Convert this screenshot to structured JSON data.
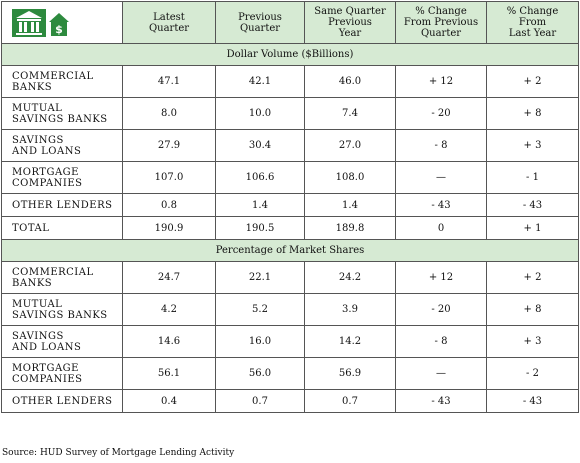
{
  "header": {
    "columns": [
      "Latest\nQuarter",
      "Previous\nQuarter",
      "Same Quarter\nPrevious\nYear",
      "% Change\nFrom Previous\nQuarter",
      "% Change\nFrom\nLast Year"
    ],
    "logo_icons": [
      "bank-building-icon",
      "house-dollar-icon"
    ],
    "logo_color": "#2d8a3e"
  },
  "sections": [
    {
      "title": "Dollar Volume ($Billions)",
      "rows": [
        {
          "label": "COMMERCIAL\nBANKS",
          "latest": "47.1",
          "previous": "42.1",
          "same_quarter_prev_year": "46.0",
          "chg_prev_quarter": "+ 12",
          "chg_last_year": "+ 2"
        },
        {
          "label": "MUTUAL\nSAVINGS BANKS",
          "latest": "8.0",
          "previous": "10.0",
          "same_quarter_prev_year": "7.4",
          "chg_prev_quarter": "- 20",
          "chg_last_year": "+ 8"
        },
        {
          "label": "SAVINGS\nAND LOANS",
          "latest": "27.9",
          "previous": "30.4",
          "same_quarter_prev_year": "27.0",
          "chg_prev_quarter": "- 8",
          "chg_last_year": "+ 3"
        },
        {
          "label": "MORTGAGE\nCOMPANIES",
          "latest": "107.0",
          "previous": "106.6",
          "same_quarter_prev_year": "108.0",
          "chg_prev_quarter": "—",
          "chg_last_year": "- 1"
        },
        {
          "label": "OTHER LENDERS",
          "latest": "0.8",
          "previous": "1.4",
          "same_quarter_prev_year": "1.4",
          "chg_prev_quarter": "- 43",
          "chg_last_year": "- 43"
        },
        {
          "label": "TOTAL",
          "latest": "190.9",
          "previous": "190.5",
          "same_quarter_prev_year": "189.8",
          "chg_prev_quarter": "0",
          "chg_last_year": "+ 1"
        }
      ]
    },
    {
      "title": "Percentage of Market Shares",
      "rows": [
        {
          "label": "COMMERCIAL\nBANKS",
          "latest": "24.7",
          "previous": "22.1",
          "same_quarter_prev_year": "24.2",
          "chg_prev_quarter": "+ 12",
          "chg_last_year": "+ 2"
        },
        {
          "label": "MUTUAL\nSAVINGS BANKS",
          "latest": "4.2",
          "previous": "5.2",
          "same_quarter_prev_year": "3.9",
          "chg_prev_quarter": "- 20",
          "chg_last_year": "+ 8"
        },
        {
          "label": "SAVINGS\nAND LOANS",
          "latest": "14.6",
          "previous": "16.0",
          "same_quarter_prev_year": "14.2",
          "chg_prev_quarter": "- 8",
          "chg_last_year": "+ 3"
        },
        {
          "label": "MORTGAGE\nCOMPANIES",
          "latest": "56.1",
          "previous": "56.0",
          "same_quarter_prev_year": "56.9",
          "chg_prev_quarter": "—",
          "chg_last_year": "- 2"
        },
        {
          "label": "OTHER LENDERS",
          "latest": "0.4",
          "previous": "0.7",
          "same_quarter_prev_year": "0.7",
          "chg_prev_quarter": "- 43",
          "chg_last_year": "- 43"
        }
      ]
    }
  ],
  "source": "Source: HUD Survey of Mortgage Lending Activity"
}
